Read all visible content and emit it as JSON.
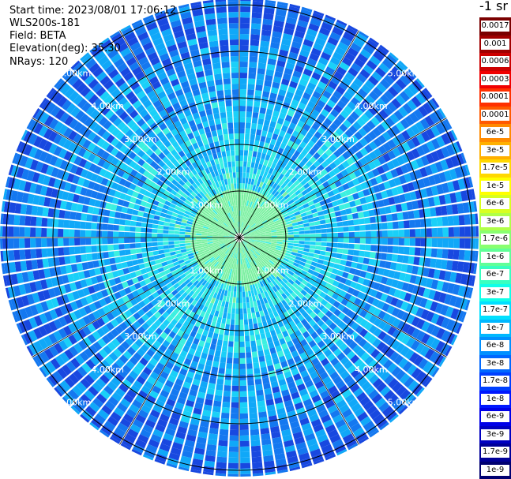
{
  "plot": {
    "start_time": "Start time: 2023/08/01 17:06:12",
    "instrument": "WLS200s-181",
    "field": "Field: BETA",
    "elevation": "Elevation(deg): 35.30",
    "nrays": "NRays: 120",
    "range_rings": [
      "1.00km",
      "2.00km",
      "3.00km",
      "4.00km",
      "5.00km"
    ],
    "unit": "-1 sr",
    "spoke_count": 12,
    "ring_count": 5
  },
  "colorbar": {
    "levels": [
      {
        "label": "0.0017",
        "color": "#7a0000"
      },
      {
        "label": "0.001",
        "color": "#a00000"
      },
      {
        "label": "0.0006",
        "color": "#cc0000"
      },
      {
        "label": "0.0003",
        "color": "#f00000"
      },
      {
        "label": "0.00017",
        "color": "#ff3000"
      },
      {
        "label": "0.0001",
        "color": "#ff5a00"
      },
      {
        "label": "6e-5",
        "color": "#ff8a00"
      },
      {
        "label": "3e-5",
        "color": "#ffb000"
      },
      {
        "label": "1.7e-5",
        "color": "#ffd800"
      },
      {
        "label": "1e-5",
        "color": "#ffff00"
      },
      {
        "label": "6e-6",
        "color": "#d8ff20"
      },
      {
        "label": "3e-6",
        "color": "#b0ff48"
      },
      {
        "label": "1.7e-6",
        "color": "#88ff70"
      },
      {
        "label": "1e-6",
        "color": "#60ff98"
      },
      {
        "label": "6e-7",
        "color": "#38ffc0"
      },
      {
        "label": "3e-7",
        "color": "#10ffe8"
      },
      {
        "label": "1.7e-7",
        "color": "#00e0ff"
      },
      {
        "label": "1e-7",
        "color": "#00b8ff"
      },
      {
        "label": "6e-8",
        "color": "#0090ff"
      },
      {
        "label": "3e-8",
        "color": "#0068ff"
      },
      {
        "label": "1.7e-8",
        "color": "#0040ff"
      },
      {
        "label": "1e-8",
        "color": "#0018ff"
      },
      {
        "label": "6e-9",
        "color": "#0000e8"
      },
      {
        "label": "3e-9",
        "color": "#0000c0"
      },
      {
        "label": "1.7e-9",
        "color": "#000098"
      },
      {
        "label": "1e-9",
        "color": "#000070"
      }
    ]
  }
}
